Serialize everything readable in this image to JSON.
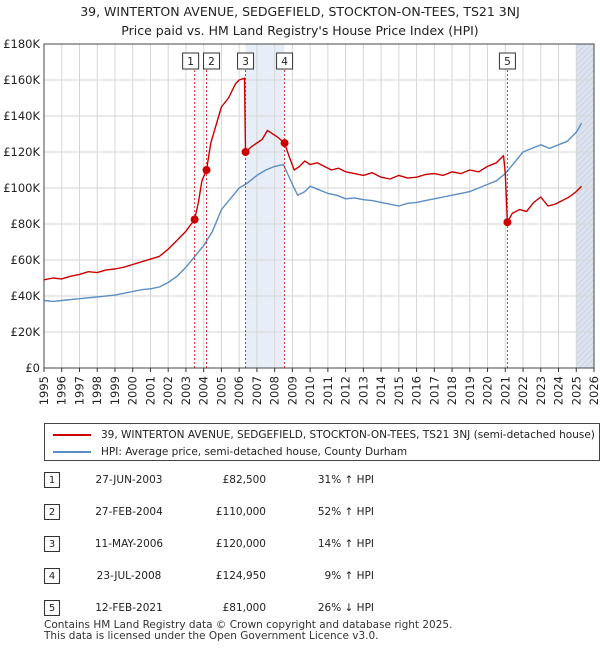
{
  "title": "39, WINTERTON AVENUE, SEDGEFIELD, STOCKTON-ON-TEES, TS21 3NJ",
  "subtitle": "Price paid vs. HM Land Registry's House Price Index (HPI)",
  "colors": {
    "property": "#cc0000",
    "hpi": "#5b8ec4",
    "future_band": "#dde4ef",
    "shade": "#e8eef7"
  },
  "legend": [
    {
      "label": "39, WINTERTON AVENUE, SEDGEFIELD, STOCKTON-ON-TEES, TS21 3NJ (semi-detached house)",
      "color": "#cc0000"
    },
    {
      "label": "HPI: Average price, semi-detached house, County Durham",
      "color": "#5b8ec4"
    }
  ],
  "sales": [
    {
      "num": "1",
      "date": "27-JUN-2003",
      "price": "£82,500",
      "hpi": "31% ↑ HPI"
    },
    {
      "num": "2",
      "date": "27-FEB-2004",
      "price": "£110,000",
      "hpi": "52% ↑ HPI"
    },
    {
      "num": "3",
      "date": "11-MAY-2006",
      "price": "£120,000",
      "hpi": "14% ↑ HPI"
    },
    {
      "num": "4",
      "date": "23-JUL-2008",
      "price": "£124,950",
      "hpi": "9% ↑ HPI"
    },
    {
      "num": "5",
      "date": "12-FEB-2021",
      "price": "£81,000",
      "hpi": "26% ↓ HPI"
    }
  ],
  "footer": {
    "line1": "Contains HM Land Registry data © Crown copyright and database right 2025.",
    "line2": "This data is licensed under the Open Government Licence v3.0."
  },
  "chart_data": {
    "type": "line",
    "xlim": [
      1995,
      2026
    ],
    "ylim": [
      0,
      180000
    ],
    "x_ticks": [
      "1995",
      "1996",
      "1997",
      "1998",
      "1999",
      "2000",
      "2001",
      "2002",
      "2003",
      "2004",
      "2005",
      "2006",
      "2007",
      "2008",
      "2009",
      "2010",
      "2011",
      "2012",
      "2013",
      "2014",
      "2015",
      "2016",
      "2017",
      "2018",
      "2019",
      "2020",
      "2021",
      "2022",
      "2023",
      "2024",
      "2025",
      "2026"
    ],
    "y_ticks": [
      {
        "value": 0,
        "label": "£0"
      },
      {
        "value": 20000,
        "label": "£20K"
      },
      {
        "value": 40000,
        "label": "£40K"
      },
      {
        "value": 60000,
        "label": "£60K"
      },
      {
        "value": 80000,
        "label": "£80K"
      },
      {
        "value": 100000,
        "label": "£100K"
      },
      {
        "value": 120000,
        "label": "£120K"
      },
      {
        "value": 140000,
        "label": "£140K"
      },
      {
        "value": 160000,
        "label": "£160K"
      },
      {
        "value": 180000,
        "label": "£180K"
      }
    ],
    "grid": true,
    "shaded_ranges": [
      [
        2006.36,
        2008.56
      ]
    ],
    "future_from": 2025.0,
    "series": [
      {
        "name": "39, WINTERTON AVENUE, SEDGEFIELD, STOCKTON-ON-TEES, TS21 3NJ (semi-detached house)",
        "color": "#cc0000",
        "points": [
          [
            1995.0,
            49000
          ],
          [
            1995.5,
            50000
          ],
          [
            1996.0,
            49500
          ],
          [
            1996.5,
            51000
          ],
          [
            1997.0,
            52000
          ],
          [
            1997.5,
            53500
          ],
          [
            1998.0,
            53000
          ],
          [
            1998.5,
            54500
          ],
          [
            1999.0,
            55000
          ],
          [
            1999.5,
            56000
          ],
          [
            2000.0,
            57500
          ],
          [
            2000.5,
            59000
          ],
          [
            2001.0,
            60500
          ],
          [
            2001.5,
            62000
          ],
          [
            2002.0,
            66000
          ],
          [
            2002.5,
            71000
          ],
          [
            2003.0,
            76000
          ],
          [
            2003.49,
            82500
          ],
          [
            2003.7,
            92000
          ],
          [
            2003.9,
            104000
          ],
          [
            2004.16,
            110000
          ],
          [
            2004.4,
            125000
          ],
          [
            2004.7,
            135000
          ],
          [
            2005.0,
            145000
          ],
          [
            2005.4,
            150000
          ],
          [
            2005.8,
            158000
          ],
          [
            2006.0,
            160000
          ],
          [
            2006.3,
            161000
          ],
          [
            2006.36,
            120000
          ],
          [
            2006.7,
            123000
          ],
          [
            2007.0,
            125000
          ],
          [
            2007.3,
            127000
          ],
          [
            2007.6,
            132000
          ],
          [
            2007.9,
            130000
          ],
          [
            2008.2,
            128000
          ],
          [
            2008.56,
            124950
          ],
          [
            2008.8,
            118000
          ],
          [
            2009.1,
            110000
          ],
          [
            2009.4,
            112000
          ],
          [
            2009.7,
            115000
          ],
          [
            2010.0,
            113000
          ],
          [
            2010.4,
            114000
          ],
          [
            2010.8,
            112000
          ],
          [
            2011.2,
            110000
          ],
          [
            2011.6,
            111000
          ],
          [
            2012.0,
            109000
          ],
          [
            2012.5,
            108000
          ],
          [
            2013.0,
            107000
          ],
          [
            2013.5,
            108500
          ],
          [
            2014.0,
            106000
          ],
          [
            2014.5,
            105000
          ],
          [
            2015.0,
            107000
          ],
          [
            2015.5,
            105500
          ],
          [
            2016.0,
            106000
          ],
          [
            2016.5,
            107500
          ],
          [
            2017.0,
            108000
          ],
          [
            2017.5,
            107000
          ],
          [
            2018.0,
            109000
          ],
          [
            2018.5,
            108000
          ],
          [
            2019.0,
            110000
          ],
          [
            2019.5,
            109000
          ],
          [
            2020.0,
            112000
          ],
          [
            2020.5,
            114000
          ],
          [
            2020.9,
            118000
          ],
          [
            2021.0,
            108000
          ],
          [
            2021.12,
            81000
          ],
          [
            2021.4,
            86000
          ],
          [
            2021.8,
            88000
          ],
          [
            2022.2,
            87000
          ],
          [
            2022.6,
            92000
          ],
          [
            2023.0,
            95000
          ],
          [
            2023.4,
            90000
          ],
          [
            2023.8,
            91000
          ],
          [
            2024.2,
            93000
          ],
          [
            2024.6,
            95000
          ],
          [
            2025.0,
            98000
          ],
          [
            2025.3,
            101000
          ]
        ]
      },
      {
        "name": "HPI: Average price, semi-detached house, County Durham",
        "color": "#5b8ec4",
        "points": [
          [
            1995.0,
            37500
          ],
          [
            1995.5,
            37000
          ],
          [
            1996.0,
            37500
          ],
          [
            1996.5,
            38000
          ],
          [
            1997.0,
            38500
          ],
          [
            1997.5,
            39000
          ],
          [
            1998.0,
            39500
          ],
          [
            1998.5,
            40000
          ],
          [
            1999.0,
            40500
          ],
          [
            1999.5,
            41500
          ],
          [
            2000.0,
            42500
          ],
          [
            2000.5,
            43500
          ],
          [
            2001.0,
            44000
          ],
          [
            2001.5,
            45000
          ],
          [
            2002.0,
            47500
          ],
          [
            2002.5,
            51000
          ],
          [
            2003.0,
            56000
          ],
          [
            2003.5,
            62000
          ],
          [
            2004.0,
            68000
          ],
          [
            2004.5,
            76000
          ],
          [
            2005.0,
            88000
          ],
          [
            2005.5,
            94000
          ],
          [
            2006.0,
            100000
          ],
          [
            2006.5,
            103000
          ],
          [
            2007.0,
            107000
          ],
          [
            2007.5,
            110000
          ],
          [
            2008.0,
            112000
          ],
          [
            2008.5,
            113000
          ],
          [
            2009.0,
            102000
          ],
          [
            2009.3,
            96000
          ],
          [
            2009.7,
            98000
          ],
          [
            2010.0,
            101000
          ],
          [
            2010.5,
            99000
          ],
          [
            2011.0,
            97000
          ],
          [
            2011.5,
            96000
          ],
          [
            2012.0,
            94000
          ],
          [
            2012.5,
            94500
          ],
          [
            2013.0,
            93500
          ],
          [
            2013.5,
            93000
          ],
          [
            2014.0,
            92000
          ],
          [
            2014.5,
            91000
          ],
          [
            2015.0,
            90000
          ],
          [
            2015.5,
            91500
          ],
          [
            2016.0,
            92000
          ],
          [
            2016.5,
            93000
          ],
          [
            2017.0,
            94000
          ],
          [
            2017.5,
            95000
          ],
          [
            2018.0,
            96000
          ],
          [
            2018.5,
            97000
          ],
          [
            2019.0,
            98000
          ],
          [
            2019.5,
            100000
          ],
          [
            2020.0,
            102000
          ],
          [
            2020.5,
            104000
          ],
          [
            2021.0,
            108000
          ],
          [
            2021.5,
            114000
          ],
          [
            2022.0,
            120000
          ],
          [
            2022.5,
            122000
          ],
          [
            2023.0,
            124000
          ],
          [
            2023.5,
            122000
          ],
          [
            2024.0,
            124000
          ],
          [
            2024.5,
            126000
          ],
          [
            2025.0,
            131000
          ],
          [
            2025.3,
            136000
          ]
        ]
      }
    ],
    "markers": [
      {
        "label": "1",
        "x": 2003.49,
        "y": 82500
      },
      {
        "label": "2",
        "x": 2004.16,
        "y": 110000
      },
      {
        "label": "3",
        "x": 2006.36,
        "y": 120000
      },
      {
        "label": "4",
        "x": 2008.56,
        "y": 124950
      },
      {
        "label": "5",
        "x": 2021.12,
        "y": 81000
      }
    ]
  }
}
